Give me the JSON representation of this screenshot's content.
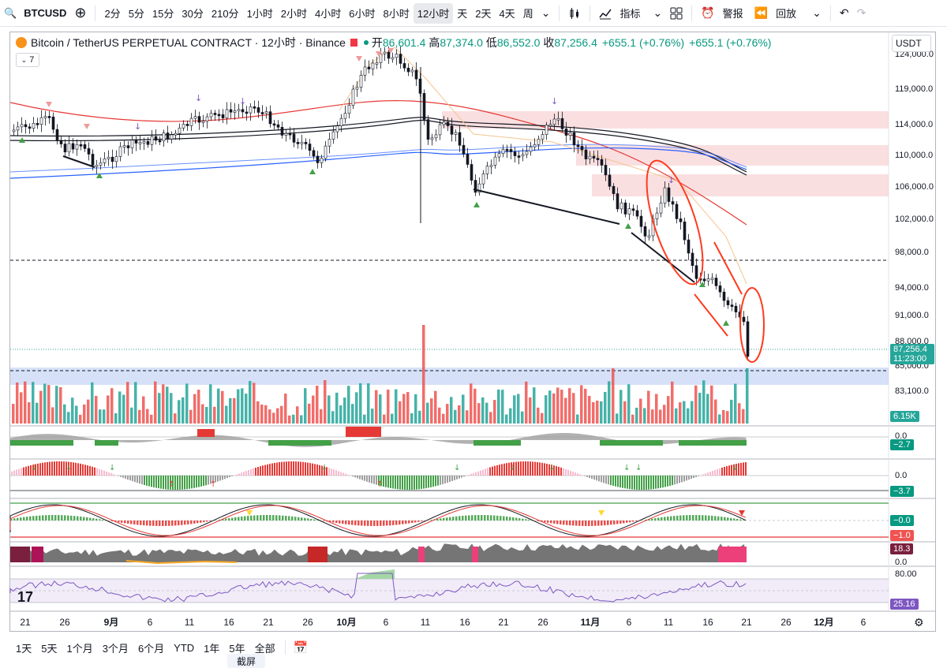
{
  "toolbar": {
    "symbol": "BTCUSD",
    "intervals": [
      "2分",
      "5分",
      "15分",
      "30分",
      "210分",
      "1小时",
      "2小时",
      "4小时",
      "6小时",
      "8小时",
      "12小时",
      "天",
      "2天",
      "4天",
      "周"
    ],
    "active_interval": "12小时",
    "indicators_label": "指标",
    "alert_label": "警报",
    "replay_label": "回放"
  },
  "legend": {
    "title": "Bitcoin / TetherUS PERPETUAL CONTRACT · 12小时 · Binance",
    "open_label": "开",
    "open": "86,601.4",
    "high_label": "高",
    "high": "87,374.0",
    "low_label": "低",
    "low": "86,552.0",
    "close_label": "收",
    "close": "87,256.4",
    "change": "+655.1 (+0.76%)",
    "change2": "+655.1 (+0.76%)"
  },
  "badge_count": "7",
  "currency": "USDT",
  "price_axis": [
    {
      "label": "124,000.0",
      "y": 68
    },
    {
      "label": "119,000.0",
      "y": 112
    },
    {
      "label": "114,000.0",
      "y": 157
    },
    {
      "label": "110,000.0",
      "y": 196
    },
    {
      "label": "106,000.0",
      "y": 236
    },
    {
      "label": "102,000.0",
      "y": 277
    },
    {
      "label": "98,000.0",
      "y": 319
    },
    {
      "label": "94,000.0",
      "y": 364
    },
    {
      "label": "91,000.0",
      "y": 399
    },
    {
      "label": "88,000.0",
      "y": 432
    },
    {
      "label": "85,000.0",
      "y": 463
    },
    {
      "label": "83,100.0",
      "y": 495
    }
  ],
  "current_price": "87,256.4",
  "countdown": "11:23:00",
  "volume_tag": "6.15K",
  "indicator_values": {
    "ind1_zero": "0.0",
    "ind1": "−2.7",
    "ind2_zero": "0.0",
    "ind2": "−3.7",
    "ind3a": "−0.0",
    "ind3b": "−1.0",
    "ind4": "18.3",
    "ind4_zero": "0.0",
    "rsi_top": "80.00",
    "rsi": "25.16"
  },
  "time_axis": [
    "21",
    "26",
    "9月",
    "6",
    "11",
    "16",
    "21",
    "26",
    "10月",
    "6",
    "11",
    "16",
    "21",
    "26",
    "11月",
    "6",
    "11",
    "16",
    "21",
    "26",
    "12月",
    "6"
  ],
  "range_buttons": [
    "1天",
    "5天",
    "1个月",
    "3个月",
    "6个月",
    "YTD",
    "1年",
    "5年",
    "全部"
  ],
  "screenshot_label": "截屏",
  "colors": {
    "up": "#26a69a",
    "down": "#ef5350",
    "ma_black": "#131722",
    "ma_blue": "#2962ff",
    "ma_red": "#e53935",
    "annotation": "#ff3b1f"
  }
}
